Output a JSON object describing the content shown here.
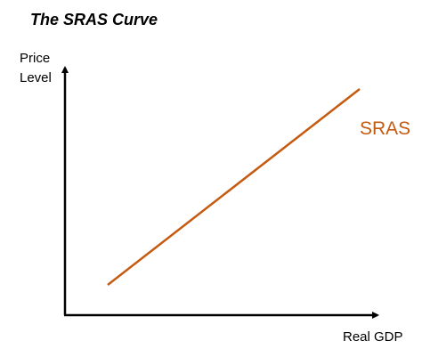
{
  "title": "The SRAS Curve",
  "y_axis_label": [
    "Price",
    "Level"
  ],
  "x_axis_label": "Real GDP",
  "curve_label": "SRAS"
}
